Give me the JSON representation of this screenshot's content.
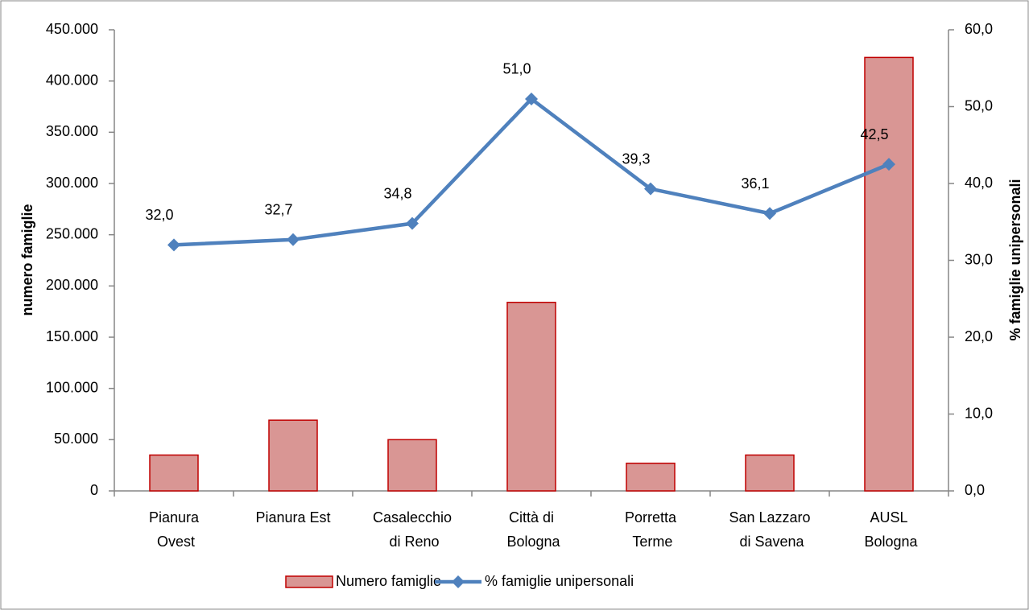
{
  "chart_data": {
    "type": "bar-line",
    "categories": [
      "Pianura\nOvest",
      "Pianura Est",
      "Casalecchio\ndi Reno",
      "Città di\nBologna",
      "Porretta\nTerme",
      "San Lazzaro\ndi Savena",
      "AUSL\nBologna"
    ],
    "series": [
      {
        "name": "Numero famiglie",
        "type": "bar",
        "color": "#d99694",
        "stroke": "#c00000",
        "values": [
          35000,
          69000,
          50000,
          184000,
          27000,
          35000,
          423000
        ]
      },
      {
        "name": "% famiglie unipersonali",
        "type": "line",
        "axis": "y2",
        "color": "#4f81bd",
        "values": [
          32.0,
          32.7,
          34.8,
          51.0,
          39.3,
          36.1,
          42.5
        ],
        "value_labels": [
          "32,0",
          "32,7",
          "34,8",
          "51,0",
          "39,3",
          "36,1",
          "42,5"
        ]
      }
    ],
    "ylabel": "numero famiglie",
    "y2label": "% famiglie unipersonali",
    "ylim": [
      0,
      450000
    ],
    "yticks": [
      0,
      {
        "value": 50000,
        "label": "50.000"
      },
      {
        "value": 100000,
        "label": "100.000"
      },
      {
        "value": 150000,
        "label": "150.000"
      },
      {
        "value": 200000,
        "label": "200.000"
      },
      {
        "value": 250000,
        "label": "250.000"
      },
      {
        "value": 300000,
        "label": "300.000"
      },
      {
        "value": 350000,
        "label": "350.000"
      },
      {
        "value": 400000,
        "label": "400.000"
      },
      {
        "value": 450000,
        "label": "450.000"
      }
    ],
    "y2lim": [
      0,
      60
    ],
    "y2ticks": [
      {
        "value": 0,
        "label": "0,0"
      },
      {
        "value": 10,
        "label": "10,0"
      },
      {
        "value": 20,
        "label": "20,0"
      },
      {
        "value": 30,
        "label": "30,0"
      },
      {
        "value": 40,
        "label": "40,0"
      },
      {
        "value": 50,
        "label": "50,0"
      },
      {
        "value": 60,
        "label": "60,0"
      }
    ],
    "legend": "bottom"
  }
}
